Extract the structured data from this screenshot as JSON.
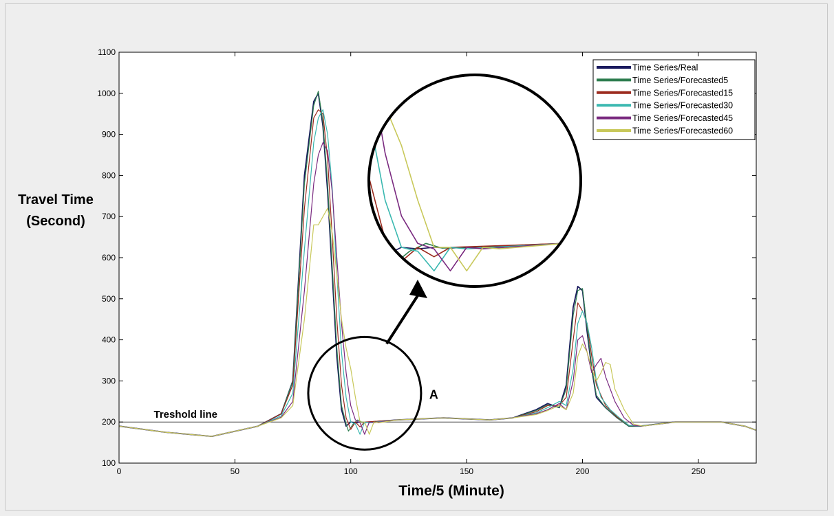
{
  "chart_data": {
    "type": "line",
    "xlabel": "Time/5 (Minute)",
    "ylabel_line1": "Travel Time",
    "ylabel_line2": "(Second)",
    "xlim": [
      0,
      275
    ],
    "ylim": [
      100,
      1100
    ],
    "xticks": [
      0,
      50,
      100,
      150,
      200,
      250
    ],
    "yticks": [
      100,
      200,
      300,
      400,
      500,
      600,
      700,
      800,
      900,
      1000,
      1100
    ],
    "legend_position": "top-right",
    "threshold": {
      "label": "Treshold line",
      "value": 200
    },
    "annotation": {
      "label": "A",
      "x_center": 106,
      "y_center": 270,
      "x_radius": 18,
      "y_radius": 135
    },
    "series": [
      {
        "name": "Time Series/Real",
        "color": "#1a1a5e",
        "width": 1.8,
        "x": [
          0,
          20,
          40,
          60,
          70,
          75,
          80,
          84,
          86,
          88,
          90,
          92,
          94,
          96,
          98,
          100,
          102,
          104,
          106,
          120,
          140,
          160,
          170,
          180,
          185,
          190,
          193,
          196,
          198,
          200,
          202,
          204,
          206,
          210,
          215,
          220,
          225,
          240,
          250,
          260,
          270,
          275
        ],
        "y": [
          190,
          175,
          165,
          190,
          220,
          300,
          800,
          980,
          1000,
          920,
          760,
          560,
          360,
          230,
          190,
          200,
          198,
          200,
          199,
          205,
          210,
          205,
          210,
          230,
          245,
          235,
          290,
          480,
          530,
          520,
          420,
          330,
          260,
          235,
          210,
          190,
          190,
          200,
          200,
          200,
          190,
          180
        ]
      },
      {
        "name": "Time Series/Forecasted5",
        "color": "#2e7d4f",
        "width": 1.2,
        "x": [
          0,
          20,
          40,
          60,
          70,
          75,
          80,
          84,
          86,
          88,
          90,
          92,
          94,
          96,
          98,
          99,
          101,
          103,
          105,
          120,
          140,
          160,
          170,
          180,
          185,
          190,
          193,
          196,
          198,
          200,
          202,
          204,
          206,
          210,
          215,
          220,
          225,
          240,
          250,
          260,
          270,
          275
        ],
        "y": [
          190,
          175,
          165,
          190,
          220,
          300,
          780,
          970,
          1005,
          930,
          780,
          580,
          380,
          240,
          195,
          178,
          195,
          205,
          199,
          205,
          210,
          205,
          210,
          228,
          242,
          235,
          280,
          460,
          520,
          525,
          430,
          335,
          265,
          235,
          210,
          190,
          190,
          200,
          200,
          200,
          190,
          180
        ]
      },
      {
        "name": "Time Series/Forecasted15",
        "color": "#9b2a1e",
        "width": 1.2,
        "x": [
          0,
          20,
          40,
          60,
          70,
          75,
          80,
          84,
          86,
          88,
          90,
          92,
          94,
          96,
          98,
          100,
          102,
          104,
          106,
          120,
          140,
          160,
          170,
          180,
          185,
          190,
          193,
          196,
          198,
          200,
          202,
          204,
          206,
          210,
          215,
          220,
          225,
          240,
          250,
          260,
          270,
          275
        ],
        "y": [
          190,
          175,
          165,
          190,
          220,
          290,
          720,
          940,
          960,
          950,
          840,
          650,
          450,
          290,
          210,
          182,
          200,
          188,
          200,
          205,
          210,
          205,
          210,
          225,
          240,
          240,
          260,
          400,
          490,
          470,
          440,
          360,
          290,
          240,
          212,
          192,
          190,
          200,
          200,
          200,
          190,
          180
        ]
      },
      {
        "name": "Time Series/Forecasted30",
        "color": "#3ab8b0",
        "width": 1.2,
        "x": [
          0,
          20,
          40,
          60,
          70,
          75,
          80,
          84,
          86,
          88,
          90,
          92,
          94,
          96,
          98,
          100,
          102,
          104,
          106,
          108,
          120,
          140,
          160,
          170,
          180,
          185,
          190,
          193,
          196,
          198,
          200,
          202,
          204,
          206,
          208,
          212,
          216,
          220,
          225,
          240,
          250,
          260,
          270,
          275
        ],
        "y": [
          190,
          175,
          165,
          190,
          215,
          270,
          620,
          880,
          940,
          960,
          900,
          770,
          560,
          370,
          260,
          200,
          195,
          170,
          200,
          198,
          205,
          210,
          205,
          210,
          222,
          235,
          250,
          240,
          330,
          440,
          470,
          440,
          380,
          300,
          260,
          230,
          210,
          192,
          190,
          200,
          200,
          200,
          190,
          180
        ]
      },
      {
        "name": "Time Series/Forecasted45",
        "color": "#7a2a80",
        "width": 1.2,
        "x": [
          0,
          20,
          40,
          60,
          70,
          75,
          80,
          84,
          86,
          88,
          90,
          92,
          94,
          96,
          98,
          100,
          102,
          104,
          106,
          108,
          110,
          120,
          140,
          160,
          170,
          180,
          185,
          190,
          193,
          196,
          198,
          200,
          202,
          204,
          206,
          208,
          210,
          214,
          218,
          222,
          226,
          240,
          250,
          260,
          270,
          275
        ],
        "y": [
          190,
          175,
          165,
          190,
          212,
          250,
          520,
          780,
          850,
          880,
          860,
          760,
          600,
          440,
          320,
          240,
          205,
          198,
          170,
          200,
          198,
          205,
          210,
          205,
          210,
          220,
          230,
          245,
          230,
          300,
          400,
          410,
          370,
          320,
          340,
          355,
          310,
          250,
          210,
          192,
          190,
          200,
          200,
          200,
          190,
          180
        ]
      },
      {
        "name": "Time Series/Forecasted60",
        "color": "#c8c85a",
        "width": 1.2,
        "x": [
          0,
          20,
          40,
          60,
          70,
          75,
          80,
          84,
          86,
          88,
          90,
          92,
          94,
          96,
          98,
          100,
          102,
          104,
          106,
          108,
          110,
          112,
          120,
          140,
          160,
          170,
          180,
          185,
          190,
          193,
          196,
          198,
          200,
          202,
          204,
          206,
          208,
          210,
          212,
          214,
          218,
          222,
          226,
          240,
          250,
          260,
          270,
          275
        ],
        "y": [
          190,
          175,
          165,
          190,
          210,
          240,
          450,
          680,
          680,
          700,
          720,
          660,
          560,
          450,
          380,
          330,
          260,
          200,
          200,
          170,
          200,
          198,
          205,
          210,
          205,
          210,
          218,
          228,
          240,
          230,
          270,
          360,
          390,
          370,
          330,
          300,
          320,
          345,
          340,
          280,
          230,
          195,
          190,
          200,
          200,
          200,
          190,
          180
        ]
      }
    ]
  }
}
